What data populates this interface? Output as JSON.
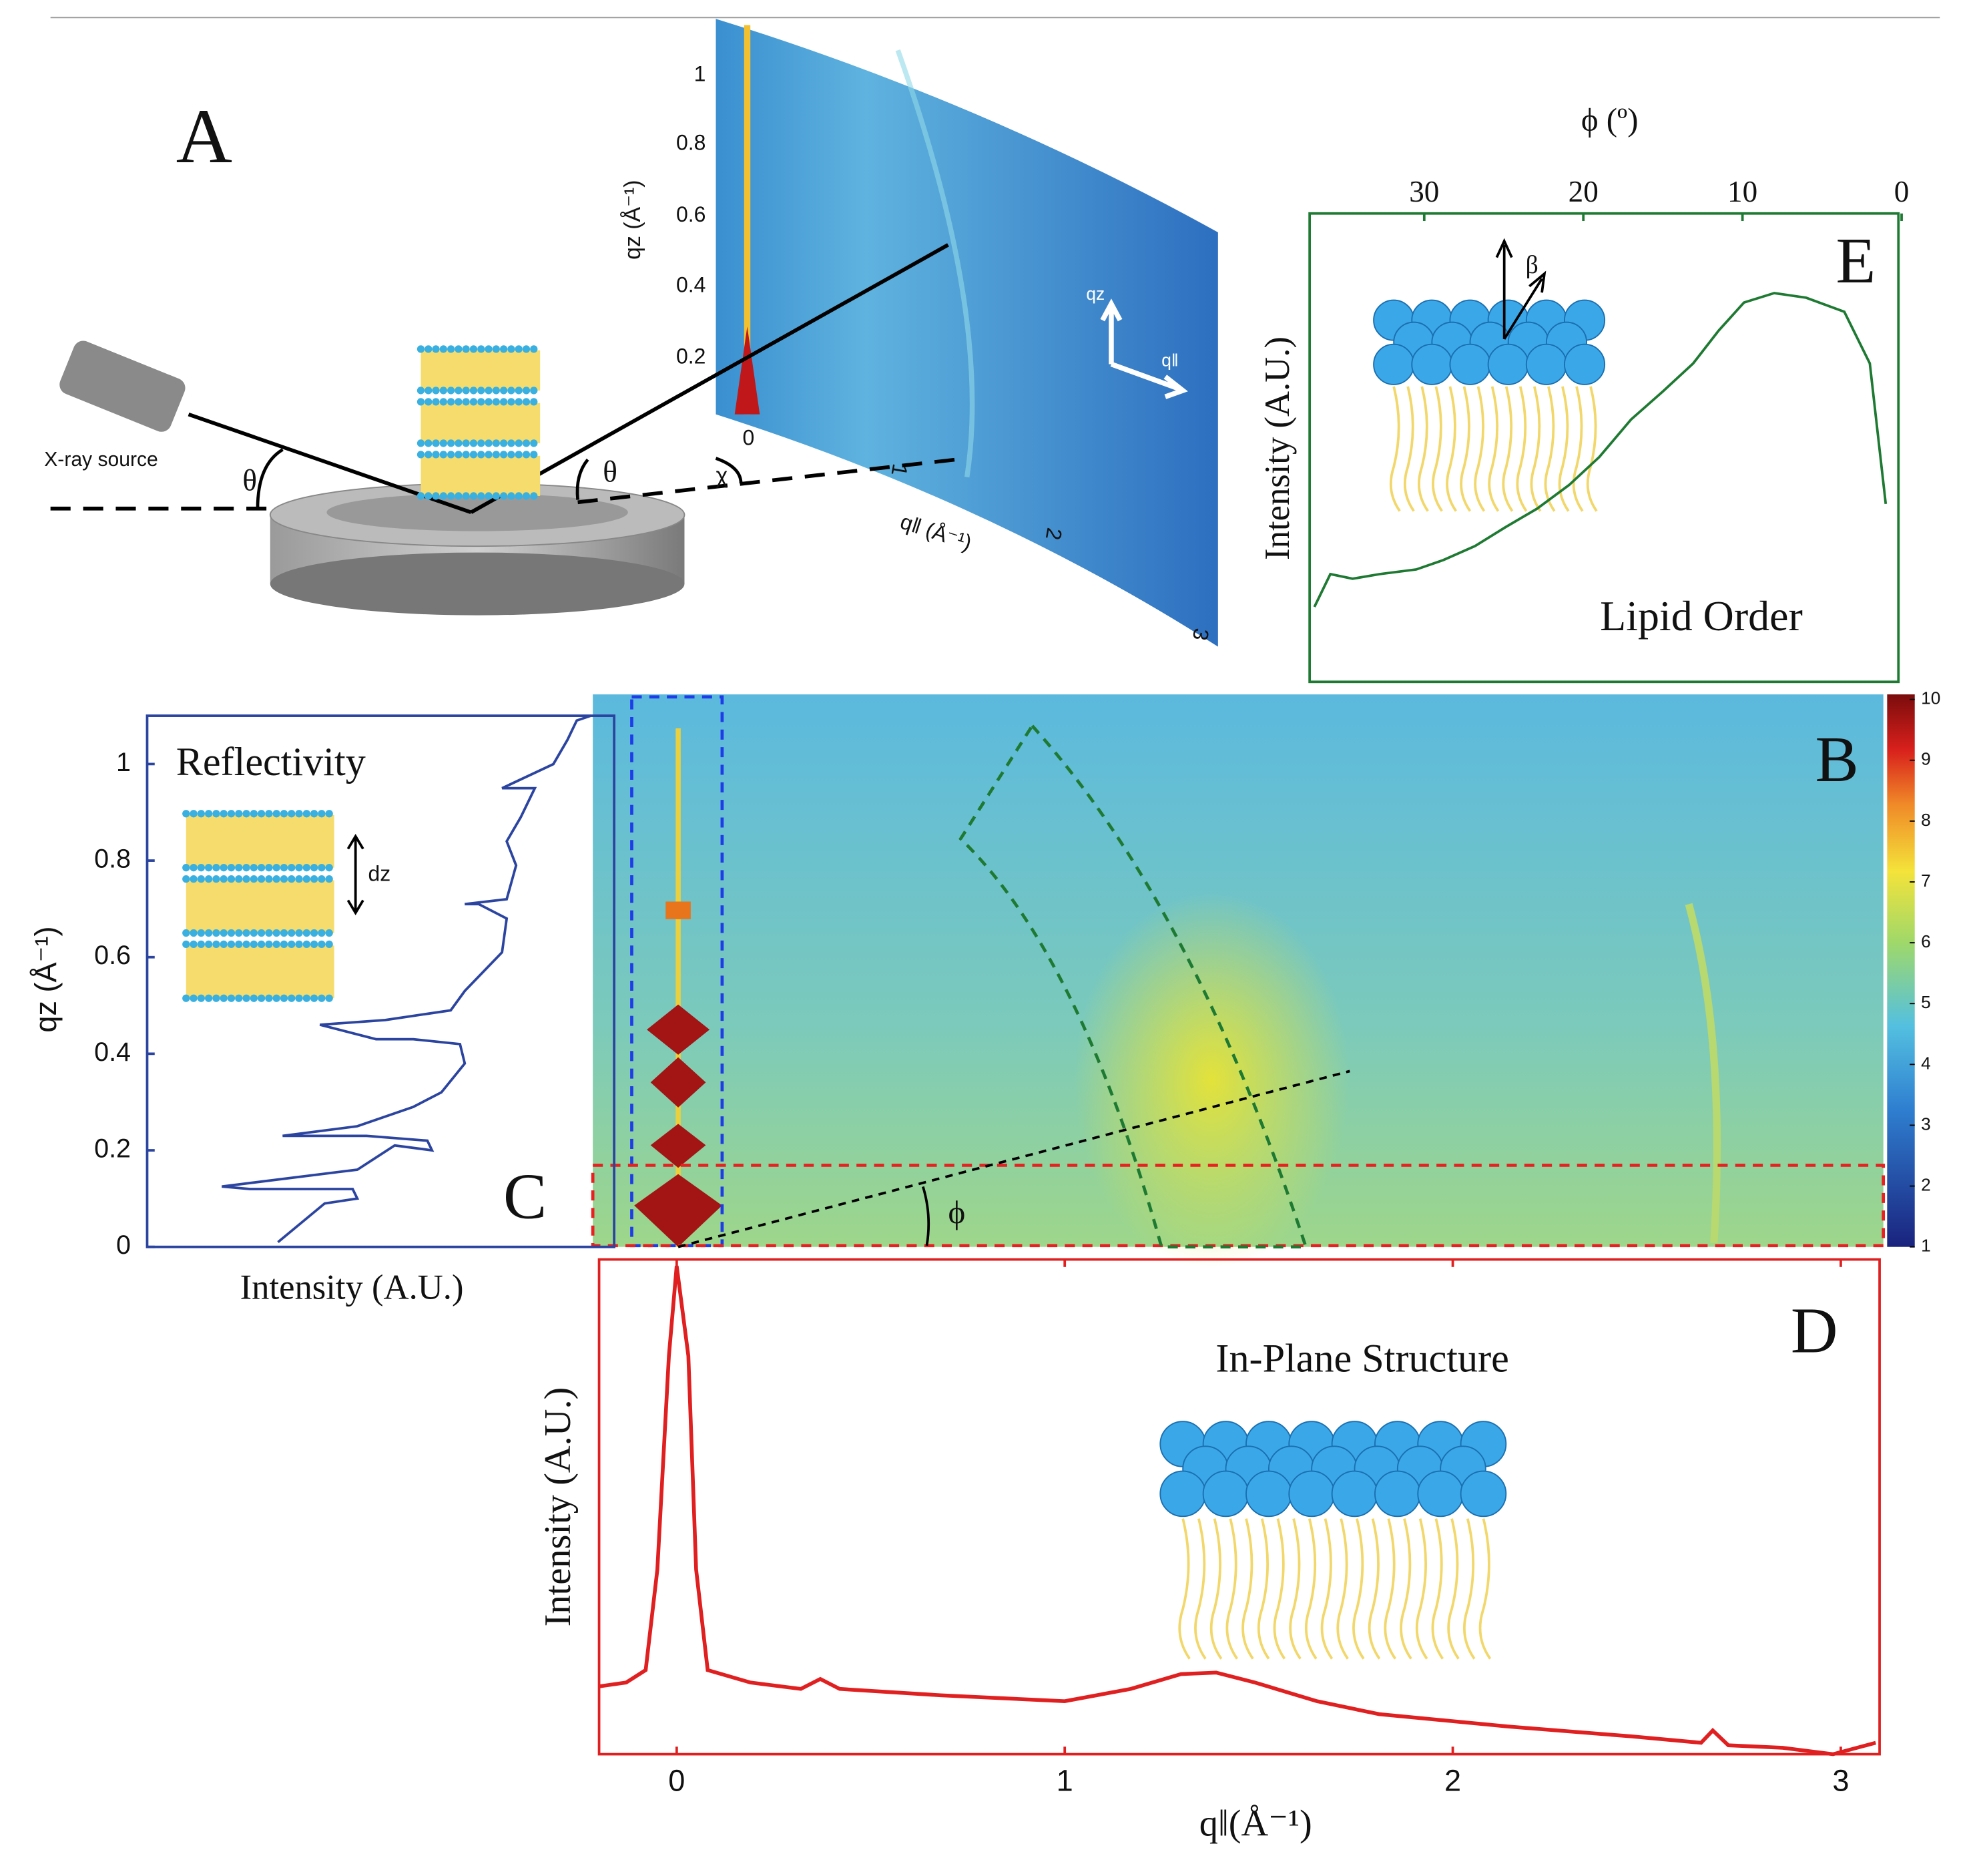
{
  "panel_a": {
    "label": "A",
    "source": "X-ray source",
    "theta_in": "θ",
    "theta_out": "θ",
    "chi": "χ",
    "qz_axis_label": "qz (Å⁻¹)",
    "qz_ticks": [
      "0.2",
      "0.4",
      "0.6",
      "0.8",
      "1"
    ],
    "q_zero": "0",
    "q_axis_label": "q‖ (Å⁻¹)",
    "q_ticks": [
      "1",
      "2",
      "3"
    ],
    "arrow_qz": "qz",
    "arrow_q": "q‖"
  },
  "chart_data": [
    {
      "type": "line",
      "panel": "E",
      "annotation": "Lipid Order",
      "beta": "β",
      "xlabel": "ϕ (º)",
      "ylabel": "Intensity (A.U.)",
      "color": "#1e7a32",
      "x": [
        36.9,
        35.9,
        34.5,
        32.8,
        30.5,
        28.8,
        26.8,
        24.9,
        22.9,
        20.9,
        19.0,
        17.0,
        15.0,
        13.1,
        11.5,
        9.9,
        8.0,
        6.0,
        3.6,
        2.0,
        1.0
      ],
      "values": [
        0.16,
        0.23,
        0.22,
        0.23,
        0.24,
        0.26,
        0.29,
        0.33,
        0.37,
        0.42,
        0.48,
        0.56,
        0.62,
        0.68,
        0.75,
        0.81,
        0.83,
        0.82,
        0.79,
        0.68,
        0.38
      ],
      "xlim": [
        37.2,
        0.2
      ],
      "xticks": [
        30,
        20,
        10,
        0
      ],
      "ylim": [
        0,
        1
      ]
    },
    {
      "type": "line",
      "panel": "C",
      "annotation": "Reflectivity",
      "spacing": "dz",
      "xlabel": "Intensity (A.U.)",
      "ylabel": "qz (Å⁻¹)",
      "color": "#2b44a0",
      "x": [
        0.28,
        0.38,
        0.45,
        0.44,
        0.22,
        0.16,
        0.45,
        0.53,
        0.61,
        0.6,
        0.47,
        0.36,
        0.29,
        0.45,
        0.57,
        0.63,
        0.68,
        0.67,
        0.57,
        0.49,
        0.37,
        0.51,
        0.65,
        0.68,
        0.76,
        0.77,
        0.71,
        0.68,
        0.77,
        0.79,
        0.77,
        0.8,
        0.83,
        0.76,
        0.87,
        0.9,
        0.92,
        0.95
      ],
      "values": [
        0.01,
        0.09,
        0.1,
        0.12,
        0.12,
        0.125,
        0.16,
        0.21,
        0.2,
        0.22,
        0.23,
        0.23,
        0.23,
        0.25,
        0.29,
        0.32,
        0.38,
        0.42,
        0.43,
        0.43,
        0.46,
        0.47,
        0.49,
        0.53,
        0.61,
        0.68,
        0.71,
        0.71,
        0.72,
        0.79,
        0.84,
        0.89,
        0.95,
        0.95,
        1.0,
        1.05,
        1.09,
        1.1
      ],
      "xlim": [
        0,
        1
      ],
      "ylim": [
        0,
        1.1
      ],
      "yticks": [
        0,
        0.2,
        0.4,
        0.6,
        0.8,
        1
      ]
    },
    {
      "type": "heatmap",
      "panel": "B",
      "phi": "ϕ",
      "colormap": "jet",
      "xlim": [
        -0.2,
        3.1
      ],
      "ylim": [
        0,
        1.1
      ],
      "clim": [
        1,
        10
      ],
      "cticks": [
        1,
        2,
        3,
        4,
        5,
        6,
        7,
        8,
        9,
        10
      ]
    },
    {
      "type": "line",
      "panel": "D",
      "annotation": "In-Plane Structure",
      "xlabel": "q‖(Å⁻¹)",
      "ylabel": "Intensity (A.U.)",
      "color": "#e02020",
      "x": [
        -0.2,
        -0.13,
        -0.08,
        -0.05,
        -0.02,
        0,
        0.03,
        0.05,
        0.08,
        0.19,
        0.32,
        0.37,
        0.42,
        0.68,
        1.0,
        1.17,
        1.3,
        1.39,
        1.49,
        1.65,
        1.81,
        2.14,
        2.46,
        2.64,
        2.67,
        2.71,
        2.85,
        2.98,
        3.09
      ],
      "values": [
        0.137,
        0.145,
        0.17,
        0.373,
        0.805,
        0.987,
        0.805,
        0.373,
        0.17,
        0.145,
        0.132,
        0.152,
        0.132,
        0.119,
        0.107,
        0.132,
        0.162,
        0.165,
        0.145,
        0.107,
        0.081,
        0.056,
        0.036,
        0.023,
        0.048,
        0.018,
        0.013,
        0,
        0.023
      ],
      "xlim": [
        -0.2,
        3.1
      ],
      "xticks": [
        0,
        1,
        2,
        3
      ],
      "ylim": [
        0,
        1
      ]
    }
  ]
}
